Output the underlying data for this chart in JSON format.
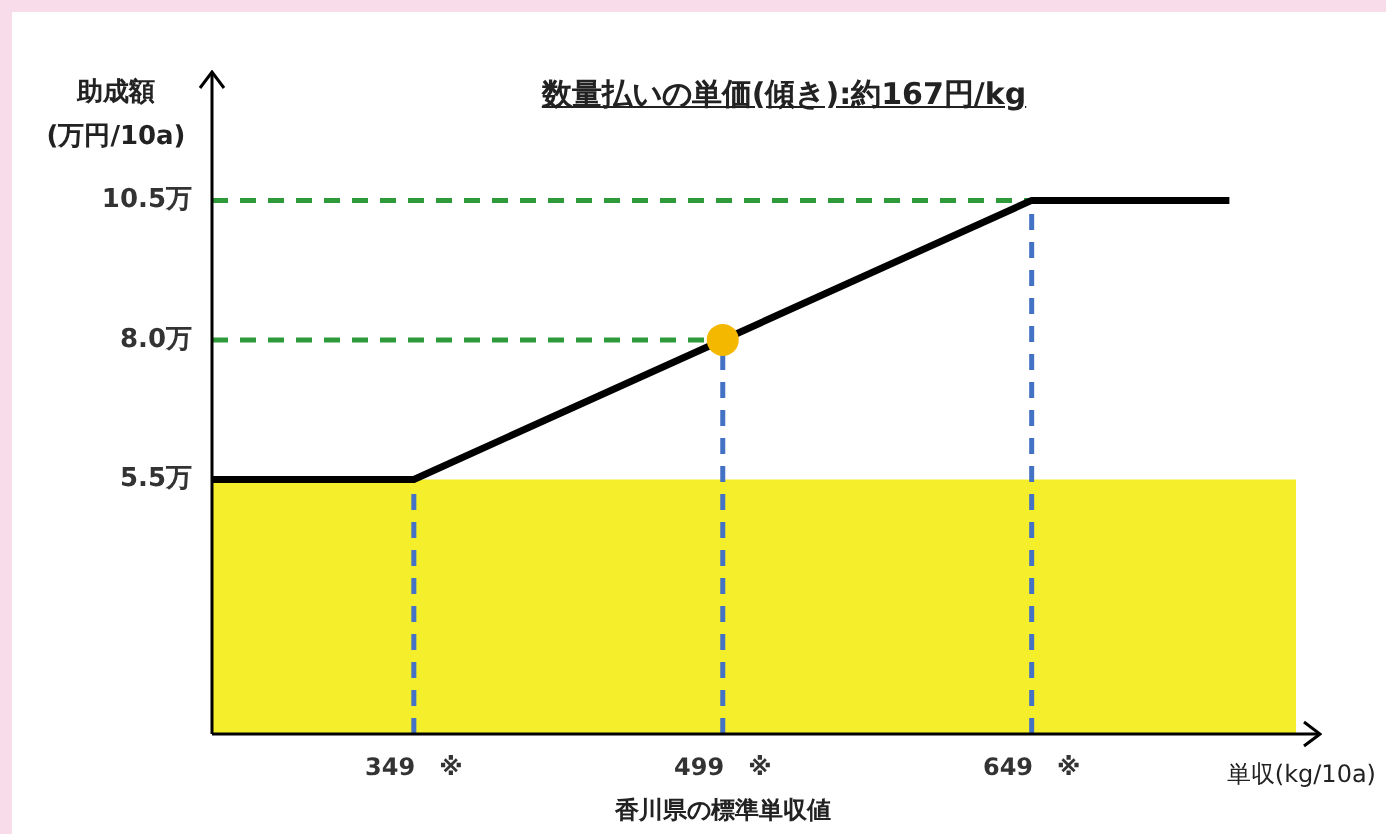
{
  "chart_data": {
    "type": "line",
    "title": "数量払いの単価(傾き):約167円/kg",
    "xlabel": "単収(kg/10a)",
    "ylabel": "助成額\n(万円/10a)",
    "annotations": [
      "香川県の標準単収値"
    ],
    "series": [
      {
        "color": "#000000",
        "marker": "none",
        "x": [
          251,
          349,
          649,
          745
        ],
        "values": [
          5.5,
          5.5,
          10.5,
          10.5
        ]
      },
      {
        "type": "scatter",
        "color": "#f5b800",
        "marker": "circle",
        "x": [
          499
        ],
        "values": [
          8.0
        ]
      }
    ],
    "xlim": [
      251,
      789
    ],
    "ylim": [
      0.94,
      12.8
    ],
    "xticks": [
      {
        "value": 349,
        "label": "349　※"
      },
      {
        "value": 499,
        "label": "499　※"
      },
      {
        "value": 649,
        "label": "649　※"
      }
    ],
    "yticks": [
      {
        "value": 5.5,
        "label": "5.5万"
      },
      {
        "value": 8.0,
        "label": "8.0万"
      },
      {
        "value": 10.5,
        "label": "10.5万"
      }
    ],
    "ref_lines": [
      {
        "axis": "y",
        "value": 10.5,
        "color": "#2e9a3a",
        "line_style": "dashed"
      },
      {
        "axis": "y",
        "value": 8.0,
        "color": "#2e9a3a",
        "line_style": "dashed"
      },
      {
        "axis": "x",
        "value": 349,
        "color": "#4472c4",
        "line_style": "dashed"
      },
      {
        "axis": "x",
        "value": 499,
        "color": "#4472c4",
        "line_style": "dashed"
      },
      {
        "axis": "x",
        "value": 649,
        "color": "#4472c4",
        "line_style": "dashed"
      }
    ],
    "bands": [
      {
        "axis": "y",
        "from": 0.94,
        "to": 5.5,
        "color": "#f5ee2a"
      }
    ],
    "grid": false,
    "legend": false,
    "line_style": "solid"
  }
}
